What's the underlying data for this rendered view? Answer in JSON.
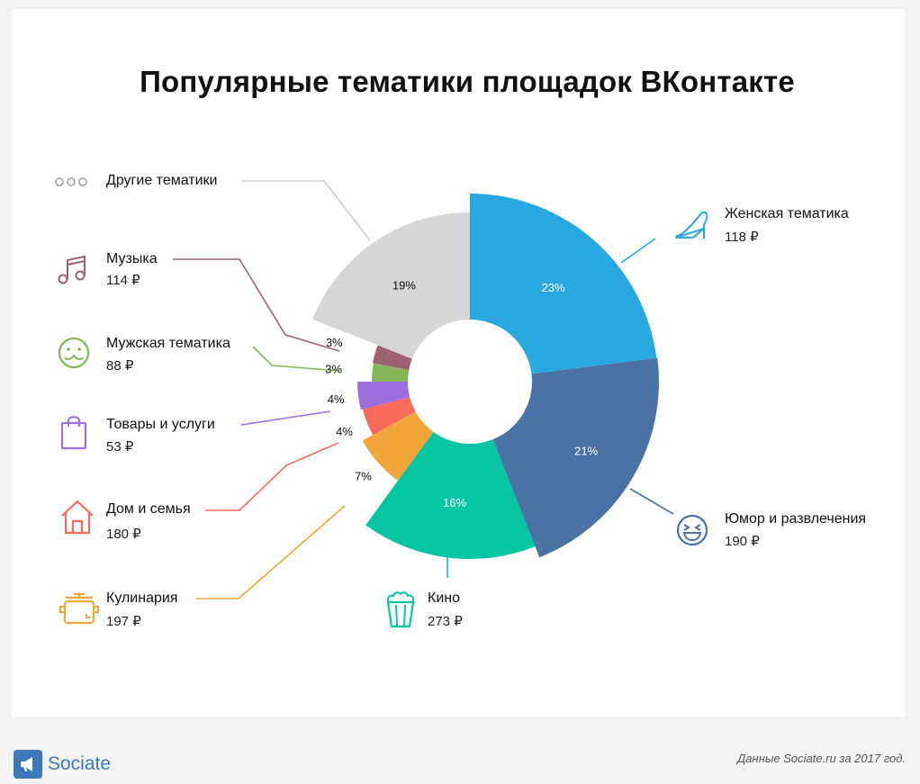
{
  "title": "Популярные тематики площадок ВКонтакте",
  "footer": {
    "logo_text": "Sociate",
    "source_prefix": "Данные ",
    "source_site": "Sociate.ru",
    "source_suffix": " за 2017 год."
  },
  "chart_data": {
    "type": "pie",
    "variant": "variable-radius donut",
    "slices": [
      {
        "name": "Женская тематика",
        "percent": 23,
        "price": "118 ₽",
        "color": "#29a8e0",
        "icon": "high-heel-icon",
        "label_color": "#ffffff"
      },
      {
        "name": "Юмор и развлечения",
        "percent": 21,
        "price": "190 ₽",
        "color": "#4a72a4",
        "icon": "laughing-face-icon",
        "label_color": "#ffffff"
      },
      {
        "name": "Кино",
        "percent": 16,
        "price": "273 ₽",
        "color": "#06c5a3",
        "icon": "popcorn-icon",
        "label_color": "#ffffff"
      },
      {
        "name": "Кулинария",
        "percent": 7,
        "price": "197 ₽",
        "color": "#f2a538",
        "icon": "cooking-pot-icon",
        "label_color": "#111111"
      },
      {
        "name": "Дом и семья",
        "percent": 4,
        "price": "180 ₽",
        "color": "#fa6a5c",
        "icon": "house-icon",
        "label_color": "#111111"
      },
      {
        "name": "Товары и услуги",
        "percent": 4,
        "price": "53 ₽",
        "color": "#9c6ede",
        "icon": "shopping-bag-icon",
        "label_color": "#111111"
      },
      {
        "name": "Мужская тематика",
        "percent": 3,
        "price": "88 ₽",
        "color": "#86b65a",
        "icon": "mustache-face-icon",
        "label_color": "#111111"
      },
      {
        "name": "Музыка",
        "percent": 3,
        "price": "114 ₽",
        "color": "#9c6170",
        "icon": "music-note-icon",
        "label_color": "#111111"
      },
      {
        "name": "Другие тематики",
        "percent": 19,
        "price": "",
        "color": "#d6d6d6",
        "icon": "three-dots-icon",
        "label_color": "#111111"
      }
    ],
    "slice_labels": [
      "23%",
      "21%",
      "16%",
      "7%",
      "4%",
      "4%",
      "3%",
      "3%",
      "19%"
    ]
  }
}
